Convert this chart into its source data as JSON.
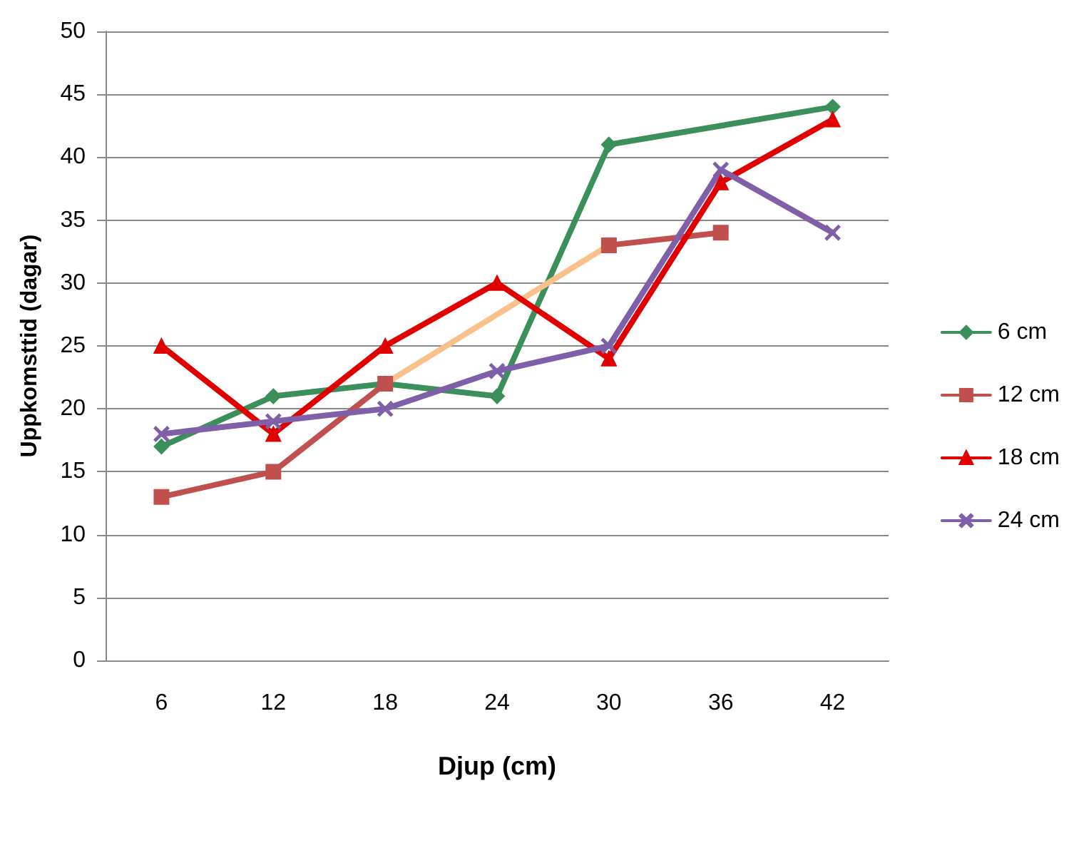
{
  "chart_data": {
    "type": "line",
    "xlabel": "Djup (cm)",
    "ylabel": "Uppkomsttid (dagar)",
    "categories": [
      "6",
      "12",
      "18",
      "24",
      "30",
      "36",
      "42"
    ],
    "ylim": [
      0,
      50
    ],
    "yticks": [
      0,
      5,
      10,
      15,
      20,
      25,
      30,
      35,
      40,
      45,
      50
    ],
    "grid": "y",
    "legend": "right",
    "series": [
      {
        "name": "6 cm",
        "color": "#3a8f5a",
        "marker": "diamond",
        "x": [
          "6",
          "12",
          "18",
          "24",
          "30",
          "42"
        ],
        "values": [
          17,
          21,
          22,
          21,
          41,
          44
        ]
      },
      {
        "name": "12 cm",
        "color": "#c0504d",
        "marker": "square",
        "values": [
          13,
          15,
          22,
          null,
          33,
          34,
          null
        ]
      },
      {
        "color": "#f9c08a",
        "marker": "none",
        "x": [
          "18",
          "30"
        ],
        "values": [
          22,
          33
        ]
      },
      {
        "name": "18 cm",
        "color": "#e00000",
        "marker": "triangle",
        "values": [
          25,
          18,
          25,
          30,
          24,
          38,
          43
        ]
      },
      {
        "name": "24 cm",
        "color": "#7f5fa8",
        "marker": "cross",
        "values": [
          18,
          19,
          20,
          23,
          25,
          39,
          34
        ]
      }
    ]
  }
}
